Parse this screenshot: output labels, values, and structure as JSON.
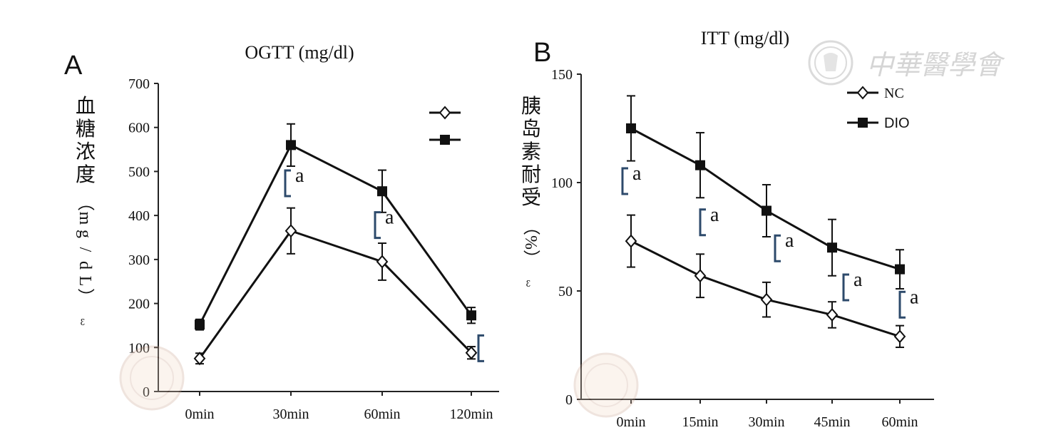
{
  "watermark": {
    "text": "中華醫學會"
  },
  "chart_data": [
    {
      "type": "line",
      "panel": "A",
      "title": "OGTT (mg/dl)",
      "ylabel": "血糖浓度（mg/dL）",
      "ylabel_chars": [
        "血",
        "糖",
        "浓",
        "度"
      ],
      "ylabel_unit_chars": [
        "（",
        "m",
        "g",
        "/",
        "d",
        "L",
        "）"
      ],
      "ylabel_tail": "ꜫ",
      "xlabel": "",
      "categories": [
        "0min",
        "30min",
        "60min",
        "120min"
      ],
      "ylim": [
        0,
        700
      ],
      "yticks": [
        0,
        100,
        200,
        300,
        400,
        500,
        600,
        700
      ],
      "ytick_labels": [
        "0",
        "100",
        "200",
        "300",
        "400",
        "500",
        "600",
        "700"
      ],
      "legend": {
        "position": "top-right",
        "entries": [
          "",
          ""
        ]
      },
      "series": [
        {
          "name": "NC",
          "marker": "open-diamond",
          "values": [
            75,
            365,
            295,
            88
          ],
          "errors": [
            12,
            52,
            42,
            14
          ]
        },
        {
          "name": "DIO",
          "marker": "filled-square",
          "values": [
            152,
            560,
            455,
            173
          ],
          "errors": [
            12,
            48,
            48,
            18
          ]
        }
      ],
      "annotations": [
        {
          "text": "a",
          "category": "30min",
          "y": 470
        },
        {
          "text": "a",
          "category": "60min",
          "y": 375
        },
        {
          "text": "",
          "category": "120min",
          "y": 95
        }
      ]
    },
    {
      "type": "line",
      "panel": "B",
      "title": "ITT (mg/dl)",
      "ylabel": "胰岛素耐受（%）",
      "ylabel_chars": [
        "胰",
        "岛",
        "素",
        "耐",
        "受"
      ],
      "ylabel_unit_chars": [
        "（",
        "%",
        "）"
      ],
      "ylabel_tail": "ꜫ",
      "xlabel": "",
      "categories": [
        "0min",
        "15min",
        "30min",
        "45min",
        "60min"
      ],
      "ylim": [
        0,
        150
      ],
      "yticks": [
        0,
        50,
        100,
        150
      ],
      "ytick_labels": [
        "0",
        "50",
        "100",
        "150"
      ],
      "legend": {
        "position": "top-right",
        "entries": [
          "NC",
          "DIO"
        ]
      },
      "series": [
        {
          "name": "NC",
          "marker": "open-diamond",
          "values": [
            73,
            57,
            46,
            39,
            29
          ],
          "errors": [
            12,
            10,
            8,
            6,
            5
          ]
        },
        {
          "name": "DIO",
          "marker": "filled-square",
          "values": [
            125,
            108,
            87,
            70,
            60
          ],
          "errors": [
            15,
            15,
            12,
            13,
            9
          ]
        }
      ],
      "annotations": [
        {
          "text": "a",
          "category": "0min",
          "y": 100
        },
        {
          "text": "a",
          "category": "15min",
          "y": 81
        },
        {
          "text": "a",
          "category": "30min",
          "y": 69
        },
        {
          "text": "a",
          "category": "45min",
          "y": 51
        },
        {
          "text": "a",
          "category": "60min",
          "y": 43
        }
      ]
    }
  ]
}
